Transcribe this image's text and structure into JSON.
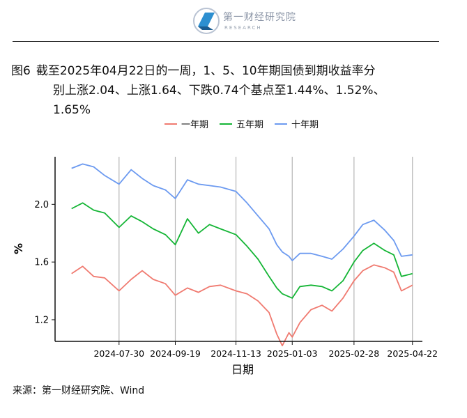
{
  "header": {
    "logo_title": "第一财经研究院",
    "logo_sub": "RESEARCH"
  },
  "caption": {
    "number": "图6",
    "line1": "截至2025年04月22日的一周，1、5、10年期国债到期收益率分",
    "line2": "别上涨2.04、上涨1.64、下跌0.74个基点至1.44%、1.52%、",
    "line3": "1.65%"
  },
  "source": "来源：第一财经研究院、Wind",
  "colors": {
    "one_year": "#f07a70",
    "five_year": "#14b535",
    "ten_year": "#6c9af0"
  },
  "chart_data": {
    "type": "line",
    "xlabel": "日期",
    "ylabel": "%",
    "ylim": [
      1.05,
      2.33
    ],
    "yticks": [
      1.2,
      1.6,
      2.0
    ],
    "ytick_labels": [
      "1.2",
      "1.6",
      "2.0"
    ],
    "xlim": [
      "2024-06-02",
      "2025-05-01"
    ],
    "xticks": [
      "2024-07-30",
      "2024-09-19",
      "2024-11-13",
      "2025-01-03",
      "2025-02-28",
      "2025-04-22"
    ],
    "grid": "vertical",
    "legend": "top-center",
    "series": [
      {
        "name": "一年期",
        "color_key": "one_year",
        "points": [
          [
            "2024-06-17",
            1.52
          ],
          [
            "2024-06-27",
            1.57
          ],
          [
            "2024-07-07",
            1.5
          ],
          [
            "2024-07-17",
            1.49
          ],
          [
            "2024-07-30",
            1.4
          ],
          [
            "2024-08-10",
            1.48
          ],
          [
            "2024-08-20",
            1.54
          ],
          [
            "2024-08-30",
            1.48
          ],
          [
            "2024-09-10",
            1.45
          ],
          [
            "2024-09-19",
            1.37
          ],
          [
            "2024-09-30",
            1.42
          ],
          [
            "2024-10-10",
            1.39
          ],
          [
            "2024-10-20",
            1.43
          ],
          [
            "2024-10-30",
            1.44
          ],
          [
            "2024-11-13",
            1.4
          ],
          [
            "2024-11-23",
            1.38
          ],
          [
            "2024-12-03",
            1.33
          ],
          [
            "2024-12-13",
            1.25
          ],
          [
            "2024-12-20",
            1.1
          ],
          [
            "2024-12-25",
            1.02
          ],
          [
            "2024-12-31",
            1.11
          ],
          [
            "2025-01-03",
            1.08
          ],
          [
            "2025-01-10",
            1.18
          ],
          [
            "2025-01-20",
            1.27
          ],
          [
            "2025-01-30",
            1.3
          ],
          [
            "2025-02-08",
            1.26
          ],
          [
            "2025-02-18",
            1.35
          ],
          [
            "2025-02-28",
            1.47
          ],
          [
            "2025-03-08",
            1.54
          ],
          [
            "2025-03-18",
            1.58
          ],
          [
            "2025-03-28",
            1.56
          ],
          [
            "2025-04-05",
            1.53
          ],
          [
            "2025-04-12",
            1.4
          ],
          [
            "2025-04-22",
            1.44
          ]
        ]
      },
      {
        "name": "五年期",
        "color_key": "five_year",
        "points": [
          [
            "2024-06-17",
            1.97
          ],
          [
            "2024-06-27",
            2.01
          ],
          [
            "2024-07-07",
            1.96
          ],
          [
            "2024-07-17",
            1.94
          ],
          [
            "2024-07-30",
            1.84
          ],
          [
            "2024-08-10",
            1.92
          ],
          [
            "2024-08-20",
            1.88
          ],
          [
            "2024-08-30",
            1.83
          ],
          [
            "2024-09-10",
            1.79
          ],
          [
            "2024-09-19",
            1.72
          ],
          [
            "2024-09-30",
            1.9
          ],
          [
            "2024-10-10",
            1.8
          ],
          [
            "2024-10-20",
            1.86
          ],
          [
            "2024-10-30",
            1.83
          ],
          [
            "2024-11-13",
            1.79
          ],
          [
            "2024-11-23",
            1.71
          ],
          [
            "2024-12-03",
            1.62
          ],
          [
            "2024-12-13",
            1.5
          ],
          [
            "2024-12-20",
            1.42
          ],
          [
            "2024-12-25",
            1.38
          ],
          [
            "2024-12-31",
            1.36
          ],
          [
            "2025-01-03",
            1.35
          ],
          [
            "2025-01-10",
            1.43
          ],
          [
            "2025-01-20",
            1.44
          ],
          [
            "2025-01-30",
            1.43
          ],
          [
            "2025-02-08",
            1.4
          ],
          [
            "2025-02-18",
            1.47
          ],
          [
            "2025-02-28",
            1.6
          ],
          [
            "2025-03-08",
            1.68
          ],
          [
            "2025-03-18",
            1.73
          ],
          [
            "2025-03-28",
            1.68
          ],
          [
            "2025-04-05",
            1.65
          ],
          [
            "2025-04-12",
            1.5
          ],
          [
            "2025-04-22",
            1.52
          ]
        ]
      },
      {
        "name": "十年期",
        "color_key": "ten_year",
        "points": [
          [
            "2024-06-17",
            2.25
          ],
          [
            "2024-06-27",
            2.28
          ],
          [
            "2024-07-07",
            2.26
          ],
          [
            "2024-07-17",
            2.2
          ],
          [
            "2024-07-30",
            2.14
          ],
          [
            "2024-08-10",
            2.24
          ],
          [
            "2024-08-20",
            2.18
          ],
          [
            "2024-08-30",
            2.13
          ],
          [
            "2024-09-10",
            2.1
          ],
          [
            "2024-09-19",
            2.04
          ],
          [
            "2024-09-30",
            2.17
          ],
          [
            "2024-10-10",
            2.14
          ],
          [
            "2024-10-20",
            2.13
          ],
          [
            "2024-10-30",
            2.12
          ],
          [
            "2024-11-13",
            2.09
          ],
          [
            "2024-11-23",
            2.01
          ],
          [
            "2024-12-03",
            1.92
          ],
          [
            "2024-12-13",
            1.83
          ],
          [
            "2024-12-20",
            1.72
          ],
          [
            "2024-12-25",
            1.67
          ],
          [
            "2024-12-31",
            1.64
          ],
          [
            "2025-01-03",
            1.61
          ],
          [
            "2025-01-10",
            1.66
          ],
          [
            "2025-01-20",
            1.66
          ],
          [
            "2025-01-30",
            1.64
          ],
          [
            "2025-02-08",
            1.62
          ],
          [
            "2025-02-18",
            1.69
          ],
          [
            "2025-02-28",
            1.78
          ],
          [
            "2025-03-08",
            1.86
          ],
          [
            "2025-03-18",
            1.89
          ],
          [
            "2025-03-28",
            1.82
          ],
          [
            "2025-04-05",
            1.75
          ],
          [
            "2025-04-12",
            1.64
          ],
          [
            "2025-04-22",
            1.65
          ]
        ]
      }
    ]
  }
}
